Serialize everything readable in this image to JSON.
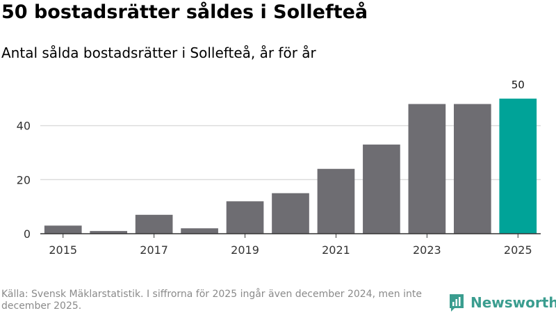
{
  "title": "50 bostadsrätter såldes i Sollefteå",
  "subtitle": "Antal sålda bostadsrätter i Sollefteå, år för år",
  "source": "Källa: Svensk Mäklarstatistik. I siffrorna för 2025 ingår även december 2024, men inte december 2025.",
  "brand": {
    "name": "Newsworthy"
  },
  "colors": {
    "bar": "#6e6d72",
    "highlight": "#00a398",
    "grid": "#dddddd",
    "axis": "#333333",
    "brand": "#3a9d8f"
  },
  "chart_data": {
    "type": "bar",
    "title": "Antal sålda bostadsrätter i Sollefteå, år för år",
    "xlabel": "",
    "ylabel": "",
    "categories": [
      "2015",
      "2016",
      "2017",
      "2018",
      "2019",
      "2020",
      "2021",
      "2022",
      "2023",
      "2024",
      "2025"
    ],
    "values": [
      3,
      1,
      7,
      2,
      12,
      15,
      24,
      33,
      48,
      48,
      50
    ],
    "ylim": [
      0,
      52
    ],
    "yticks": [
      "0",
      "20",
      "40"
    ],
    "xtick_labels": [
      "2015",
      "",
      "2017",
      "",
      "2019",
      "",
      "2021",
      "",
      "2023",
      "",
      "2025"
    ],
    "highlight_index": 10,
    "data_labels": [
      "",
      "",
      "",
      "",
      "",
      "",
      "",
      "",
      "",
      "",
      "50"
    ],
    "grid": true
  }
}
